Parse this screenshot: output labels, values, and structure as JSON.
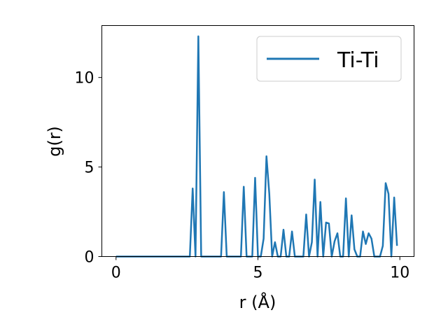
{
  "chart_data": {
    "type": "line",
    "xlabel": "r (Å)",
    "ylabel": "g(r)",
    "xlim": [
      -0.5,
      10.5
    ],
    "ylim": [
      0,
      12.9
    ],
    "xticks": [
      0,
      5,
      10
    ],
    "yticks": [
      0,
      5,
      10
    ],
    "grid": false,
    "legend": {
      "position": "top-right"
    },
    "series": [
      {
        "name": "Ti-Ti",
        "color": "#1f77b4",
        "x": [
          0.0,
          0.1,
          0.2,
          0.3,
          0.4,
          0.5,
          0.6,
          0.7,
          0.8,
          0.9,
          1.0,
          1.1,
          1.2,
          1.3,
          1.4,
          1.5,
          1.6,
          1.7,
          1.8,
          1.9,
          2.0,
          2.1,
          2.2,
          2.3,
          2.4,
          2.5,
          2.6,
          2.7,
          2.8,
          2.9,
          3.0,
          3.1,
          3.2,
          3.3,
          3.4,
          3.5,
          3.6,
          3.7,
          3.8,
          3.9,
          4.0,
          4.1,
          4.2,
          4.3,
          4.4,
          4.5,
          4.6,
          4.7,
          4.8,
          4.9,
          5.0,
          5.1,
          5.2,
          5.3,
          5.4,
          5.5,
          5.6,
          5.7,
          5.8,
          5.9,
          6.0,
          6.1,
          6.2,
          6.3,
          6.4,
          6.5,
          6.6,
          6.7,
          6.8,
          6.9,
          7.0,
          7.1,
          7.2,
          7.3,
          7.4,
          7.5,
          7.6,
          7.7,
          7.8,
          7.9,
          8.0,
          8.1,
          8.2,
          8.3,
          8.4,
          8.5,
          8.6,
          8.7,
          8.8,
          8.9,
          9.0,
          9.1,
          9.2,
          9.3,
          9.4,
          9.5,
          9.6,
          9.7,
          9.8,
          9.9
        ],
        "y": [
          0,
          0,
          0,
          0,
          0,
          0,
          0,
          0,
          0,
          0,
          0,
          0,
          0,
          0,
          0,
          0,
          0,
          0,
          0,
          0,
          0,
          0,
          0,
          0,
          0,
          0,
          0,
          3.8,
          0,
          12.3,
          0,
          0,
          0,
          0,
          0,
          0,
          0,
          0,
          3.6,
          0,
          0,
          0,
          0,
          0,
          0,
          3.9,
          0,
          0,
          0,
          4.4,
          0,
          0,
          1.0,
          5.6,
          3.5,
          0,
          0.8,
          0,
          0,
          1.5,
          0,
          0,
          1.4,
          0,
          0,
          0,
          0,
          2.35,
          0,
          0.8,
          4.3,
          0,
          3.05,
          0,
          1.9,
          1.85,
          0,
          0.85,
          1.3,
          0,
          0,
          3.25,
          0,
          2.3,
          0.4,
          0,
          0,
          1.4,
          0.7,
          1.3,
          1.0,
          0,
          0,
          0,
          0.6,
          4.1,
          3.5,
          0,
          3.3,
          0.6
        ]
      }
    ]
  }
}
